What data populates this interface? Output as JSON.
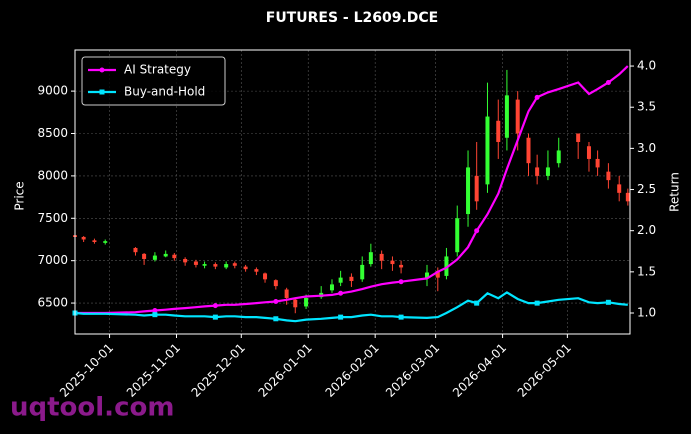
{
  "chart_data": {
    "type": "candlestick",
    "title": "FUTURES - L2609.DCE",
    "watermark": "uqtool.com",
    "ylabel": "Price",
    "y2label": "Return",
    "x": [
      "2025-09-15",
      "2025-09-19",
      "2025-09-24",
      "2025-09-29",
      "2025-10-13",
      "2025-10-17",
      "2025-10-22",
      "2025-10-27",
      "2025-10-31",
      "2025-11-05",
      "2025-11-10",
      "2025-11-14",
      "2025-11-19",
      "2025-11-24",
      "2025-11-28",
      "2025-12-03",
      "2025-12-08",
      "2025-12-12",
      "2025-12-17",
      "2025-12-22",
      "2025-12-26",
      "2025-12-31",
      "2026-01-07",
      "2026-01-12",
      "2026-01-16",
      "2026-01-21",
      "2026-01-26",
      "2026-01-30",
      "2026-02-04",
      "2026-02-09",
      "2026-02-13",
      "2026-02-25",
      "2026-03-02",
      "2026-03-06",
      "2026-03-11",
      "2026-03-16",
      "2026-03-20",
      "2026-03-25",
      "2026-03-30",
      "2026-04-03",
      "2026-04-08",
      "2026-04-13",
      "2026-04-17",
      "2026-04-22",
      "2026-04-27",
      "2026-05-06",
      "2026-05-11",
      "2026-05-15",
      "2026-05-20",
      "2026-05-25",
      "2026-05-29"
    ],
    "open": [
      7300,
      7280,
      7240,
      7210,
      7150,
      7080,
      7010,
      7050,
      7070,
      7020,
      6990,
      6940,
      6960,
      6920,
      6970,
      6930,
      6900,
      6850,
      6770,
      6660,
      6540,
      6460,
      6570,
      6650,
      6740,
      6810,
      6780,
      6960,
      7080,
      7000,
      6950,
      6800,
      6880,
      6820,
      7100,
      7550,
      8000,
      7900,
      8650,
      8450,
      8900,
      8450,
      8100,
      8000,
      8150,
      8500,
      8350,
      8200,
      8050,
      7900,
      7800
    ],
    "high": [
      7320,
      7290,
      7260,
      7250,
      7160,
      7090,
      7100,
      7120,
      7090,
      7040,
      7010,
      6990,
      6980,
      6990,
      6990,
      6950,
      6920,
      6860,
      6780,
      6680,
      6560,
      6600,
      6700,
      6780,
      6880,
      6850,
      7050,
      7200,
      7120,
      7050,
      7000,
      6950,
      6920,
      7150,
      7650,
      8300,
      8400,
      9100,
      8900,
      9250,
      9000,
      8500,
      8250,
      8300,
      8450,
      8500,
      8400,
      8300,
      8150,
      8000,
      7850
    ],
    "low": [
      7250,
      7220,
      7200,
      7190,
      7060,
      6950,
      6990,
      7040,
      7000,
      6940,
      6920,
      6910,
      6900,
      6900,
      6910,
      6870,
      6830,
      6740,
      6660,
      6480,
      6380,
      6430,
      6550,
      6620,
      6700,
      6690,
      6750,
      6930,
      6900,
      6880,
      6850,
      6700,
      6640,
      6780,
      7050,
      7400,
      7600,
      7800,
      8200,
      8300,
      8300,
      8000,
      7900,
      7950,
      8100,
      8200,
      8050,
      8000,
      7850,
      7700,
      7650
    ],
    "close": [
      7280,
      7250,
      7220,
      7230,
      7100,
      7020,
      7060,
      7080,
      7030,
      6980,
      6950,
      6960,
      6930,
      6960,
      6940,
      6900,
      6870,
      6780,
      6700,
      6560,
      6450,
      6560,
      6620,
      6720,
      6800,
      6760,
      6950,
      7100,
      7000,
      6960,
      6920,
      6860,
      6800,
      7050,
      7500,
      8100,
      7700,
      8700,
      8400,
      8950,
      8500,
      8150,
      8000,
      8100,
      8300,
      8400,
      8200,
      8100,
      7950,
      7800,
      7700
    ],
    "up_color": "#33ff33",
    "down_color": "#ff4433",
    "series": [
      {
        "name": "AI Strategy",
        "color": "#ff00ff",
        "axis": "y2",
        "marker": "circle",
        "values": [
          1.0,
          1.0,
          1.0,
          1.0,
          1.01,
          1.02,
          1.03,
          1.04,
          1.05,
          1.06,
          1.07,
          1.08,
          1.09,
          1.1,
          1.1,
          1.11,
          1.12,
          1.13,
          1.14,
          1.16,
          1.18,
          1.2,
          1.21,
          1.22,
          1.24,
          1.26,
          1.29,
          1.32,
          1.35,
          1.37,
          1.38,
          1.42,
          1.5,
          1.55,
          1.65,
          1.8,
          2.0,
          2.2,
          2.45,
          2.75,
          3.1,
          3.45,
          3.62,
          3.68,
          3.72,
          3.8,
          3.66,
          3.72,
          3.8,
          3.9,
          4.0
        ]
      },
      {
        "name": "Buy-and-Hold",
        "color": "#00e5ff",
        "axis": "y2",
        "marker": "square",
        "values": [
          1.0,
          0.99,
          0.99,
          0.99,
          0.98,
          0.97,
          0.98,
          0.98,
          0.97,
          0.96,
          0.96,
          0.96,
          0.95,
          0.96,
          0.96,
          0.95,
          0.95,
          0.94,
          0.93,
          0.91,
          0.9,
          0.92,
          0.93,
          0.94,
          0.95,
          0.95,
          0.97,
          0.98,
          0.96,
          0.96,
          0.95,
          0.94,
          0.95,
          1.0,
          1.07,
          1.15,
          1.12,
          1.24,
          1.18,
          1.25,
          1.17,
          1.12,
          1.12,
          1.14,
          1.16,
          1.18,
          1.13,
          1.12,
          1.13,
          1.11,
          1.1
        ]
      }
    ],
    "xlim": [
      "2025-09-15",
      "2026-05-30"
    ],
    "xticks": [
      "2025-10-01",
      "2025-11-01",
      "2025-12-01",
      "2026-01-01",
      "2026-02-01",
      "2026-03-01",
      "2026-04-01",
      "2026-05-01"
    ],
    "ylim": [
      6135,
      9485
    ],
    "yticks": [
      6500,
      7000,
      7500,
      8000,
      8500,
      9000
    ],
    "y2lim": [
      0.745,
      4.195
    ],
    "y2ticks": [
      {
        "value": 1.0,
        "label": "1.0"
      },
      1.5,
      {
        "value": 2.0,
        "label": "2.0"
      },
      2.5,
      {
        "value": 3.0,
        "label": "3.0"
      },
      3.5,
      {
        "value": 4.0,
        "label": "4.0"
      }
    ],
    "grid": true,
    "legend": "upper left"
  }
}
